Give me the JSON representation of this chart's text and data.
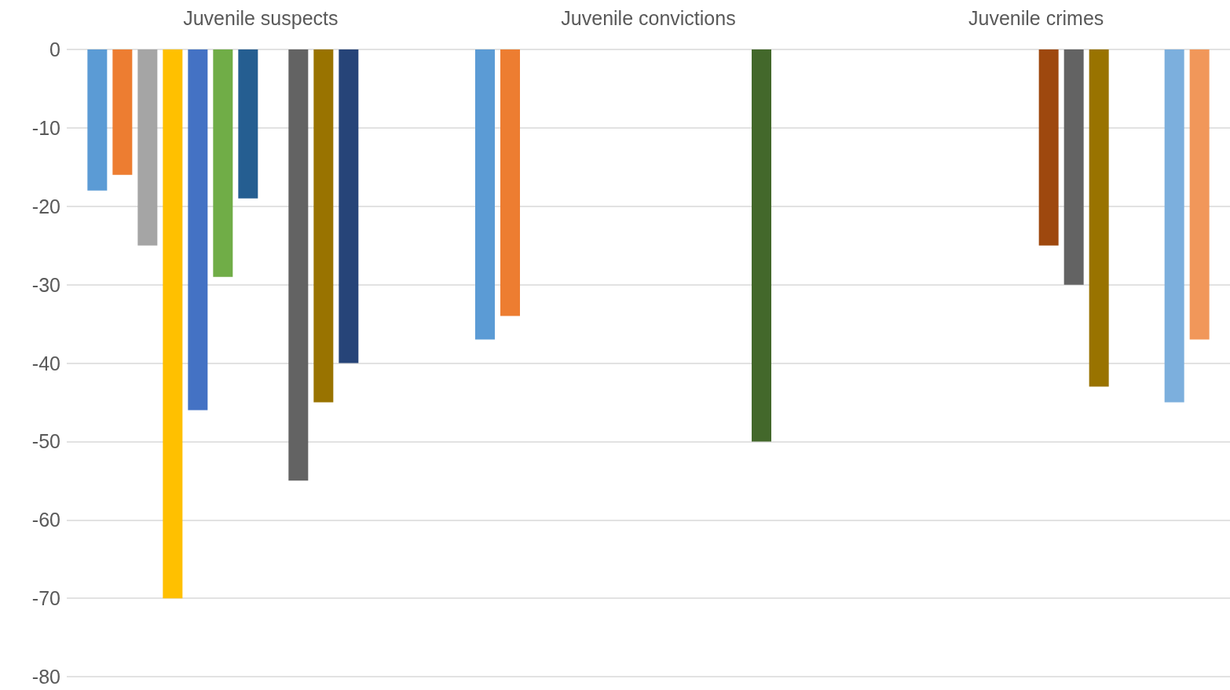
{
  "chart_data": {
    "type": "bar",
    "categories": [
      "Juvenile suspects",
      "Juvenile convictions",
      "Juvenile crimes"
    ],
    "series": [
      {
        "color": "#5b9bd5",
        "values": [
          -18,
          -37,
          null
        ]
      },
      {
        "color": "#ed7d31",
        "values": [
          -16,
          -34,
          null
        ]
      },
      {
        "color": "#a5a5a5",
        "values": [
          -25,
          null,
          null
        ]
      },
      {
        "color": "#ffc000",
        "values": [
          -70,
          null,
          null
        ]
      },
      {
        "color": "#4472c4",
        "values": [
          -46,
          null,
          null
        ]
      },
      {
        "color": "#70ad47",
        "values": [
          -29,
          null,
          null
        ]
      },
      {
        "color": "#255e91",
        "values": [
          -19,
          null,
          null
        ]
      },
      {
        "color": "#9e480e",
        "values": [
          null,
          null,
          -25
        ]
      },
      {
        "color": "#636363",
        "values": [
          -55,
          null,
          -30
        ]
      },
      {
        "color": "#997300",
        "values": [
          -45,
          null,
          -43
        ]
      },
      {
        "color": "#264478",
        "values": [
          -40,
          null,
          null
        ]
      },
      {
        "color": "#43682b",
        "values": [
          null,
          -50,
          null
        ]
      },
      {
        "color": "#7cafdd",
        "values": [
          null,
          null,
          -45
        ]
      },
      {
        "color": "#f1975a",
        "values": [
          null,
          null,
          -37
        ]
      }
    ],
    "ylim": [
      -80,
      0
    ],
    "yticks": [
      -80,
      -70,
      -60,
      -50,
      -40,
      -30,
      -20,
      -10,
      0
    ],
    "grid": "y"
  }
}
